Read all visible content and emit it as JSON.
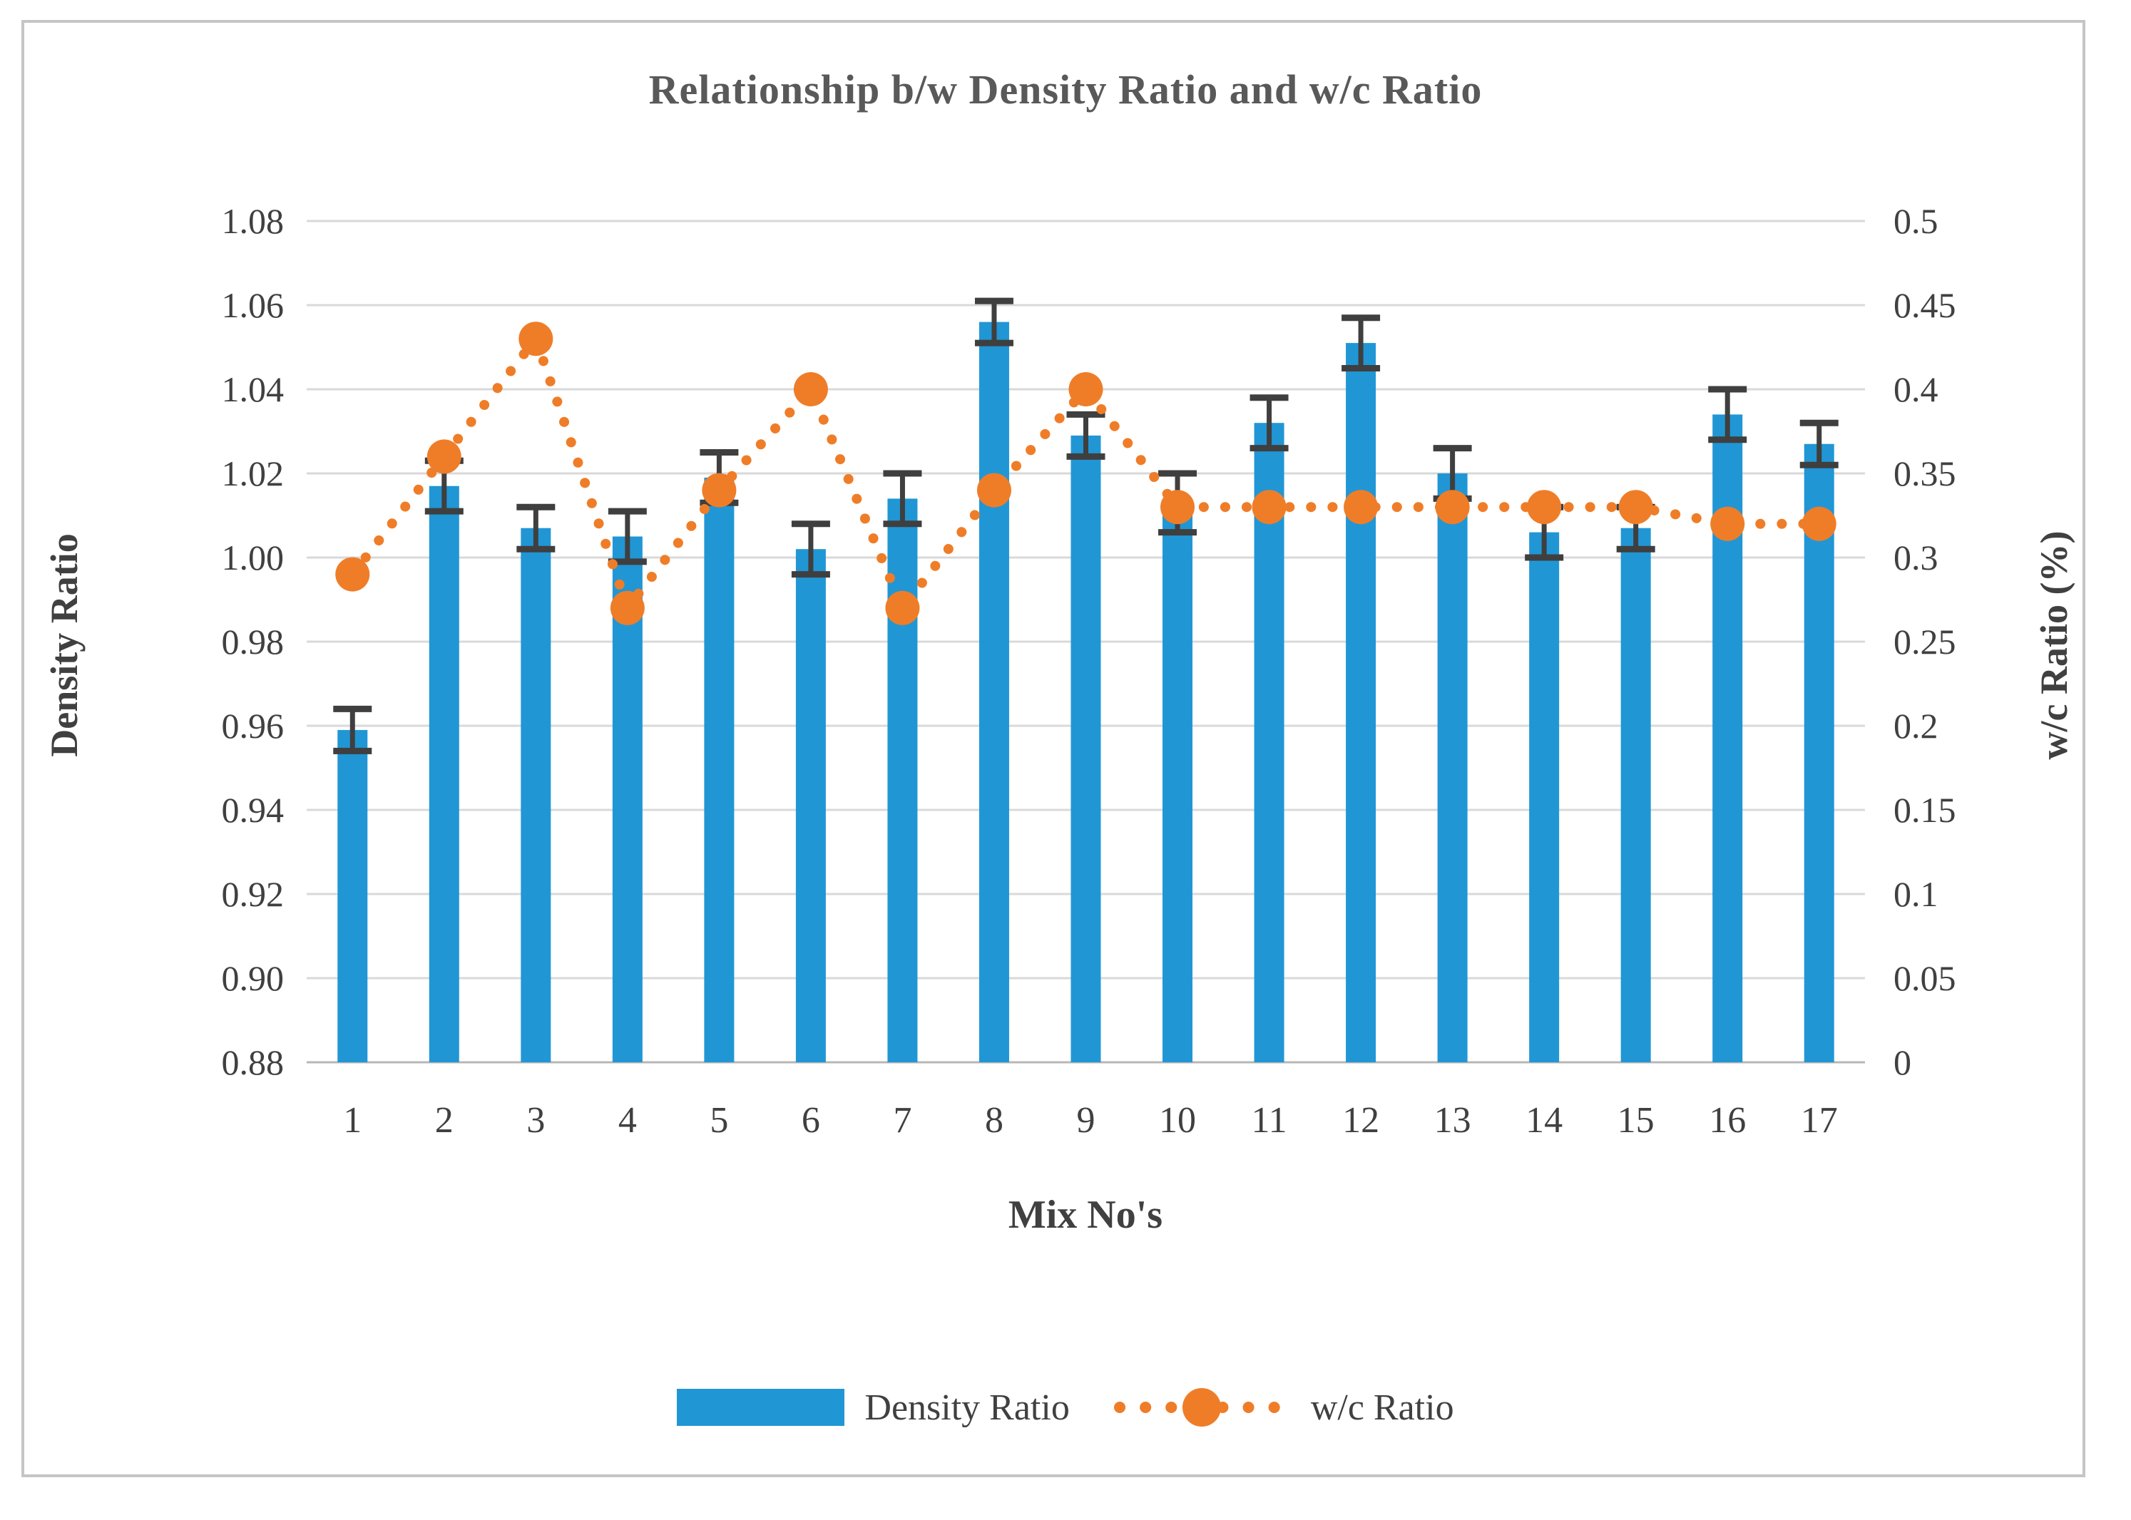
{
  "chart_data": {
    "type": "bar+line-combo",
    "title": "Relationship b/w Density Ratio and w/c Ratio",
    "x_axis_title": "Mix No's",
    "categories": [
      "1",
      "2",
      "3",
      "4",
      "5",
      "6",
      "7",
      "8",
      "9",
      "10",
      "11",
      "12",
      "13",
      "14",
      "15",
      "16",
      "17"
    ],
    "left_axis": {
      "title": "Density Ratio",
      "min": 0.88,
      "max": 1.08,
      "tick_labels": [
        "0.88",
        "0.90",
        "0.92",
        "0.94",
        "0.96",
        "0.98",
        "1.00",
        "1.02",
        "1.04",
        "1.06",
        "1.08"
      ]
    },
    "right_axis": {
      "title": "w/c Ratio (%)",
      "min": 0,
      "max": 0.5,
      "tick_labels": [
        "0",
        "0.05",
        "0.1",
        "0.15",
        "0.2",
        "0.25",
        "0.3",
        "0.35",
        "0.4",
        "0.45",
        "0.5"
      ]
    },
    "series": [
      {
        "name": "Density Ratio",
        "type": "bar",
        "axis": "left",
        "color": "#2196d5",
        "values": [
          0.959,
          1.017,
          1.007,
          1.005,
          1.019,
          1.002,
          1.014,
          1.056,
          1.029,
          1.013,
          1.032,
          1.051,
          1.02,
          1.006,
          1.007,
          1.034,
          1.027
        ],
        "errors": [
          0.005,
          0.006,
          0.005,
          0.006,
          0.006,
          0.006,
          0.006,
          0.005,
          0.005,
          0.007,
          0.006,
          0.006,
          0.006,
          0.006,
          0.005,
          0.006,
          0.005
        ]
      },
      {
        "name": "w/c Ratio",
        "type": "dotted-line",
        "axis": "right",
        "color": "#ef7d28",
        "values": [
          0.29,
          0.36,
          0.43,
          0.27,
          0.34,
          0.4,
          0.27,
          0.34,
          0.4,
          0.33,
          0.33,
          0.33,
          0.33,
          0.33,
          0.33,
          0.32,
          0.32
        ]
      }
    ],
    "legend": {
      "position": "bottom",
      "entries": [
        "Density Ratio",
        "w/c Ratio"
      ]
    },
    "grid": true,
    "gridline_color": "#d9d9d9",
    "baseline_color": "#b7b7b7",
    "error_bar_color": "#3f3f3f",
    "tick_text_color": "#404040",
    "title_color": "#595959"
  }
}
